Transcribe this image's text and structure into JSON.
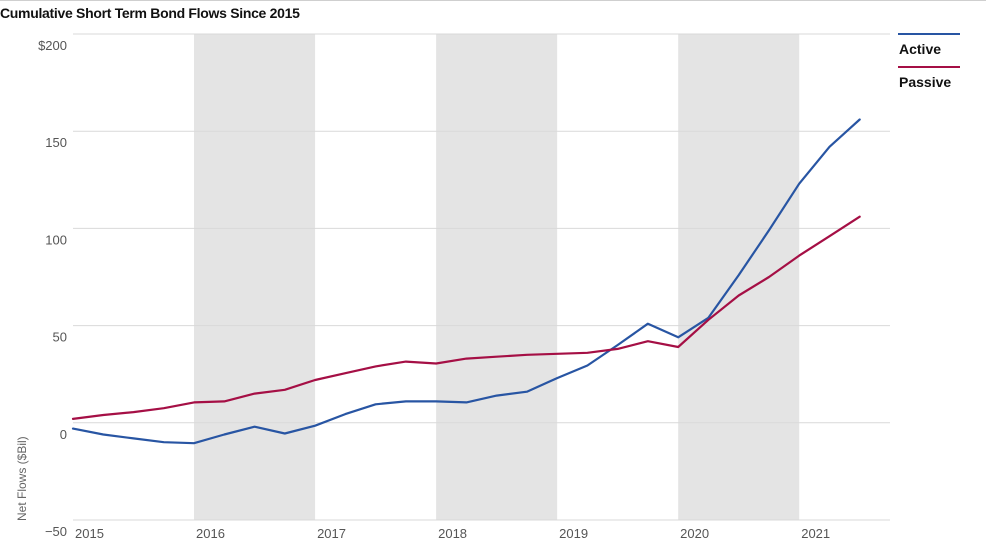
{
  "chart_data": {
    "type": "line",
    "title": "Cumulative Short Term Bond Flows Since 2015",
    "ylabel": "Net Flows ($Bil)",
    "xlabel": "",
    "x_ticks": [
      "2015",
      "2016",
      "2017",
      "2018",
      "2019",
      "2020",
      "2021"
    ],
    "y_ticks": [
      "$200",
      "150",
      "100",
      "50",
      "0",
      "−50"
    ],
    "y_tick_values": [
      200,
      150,
      100,
      50,
      0,
      -50
    ],
    "ylim": [
      -50,
      200
    ],
    "xlim": [
      2015,
      2021.75
    ],
    "shaded_years": [
      [
        2016,
        2017
      ],
      [
        2018,
        2019
      ],
      [
        2020,
        2021
      ]
    ],
    "grid": true,
    "legend_position": "top-right",
    "x": [
      2015.0,
      2015.25,
      2015.5,
      2015.75,
      2016.0,
      2016.25,
      2016.5,
      2016.75,
      2017.0,
      2017.25,
      2017.5,
      2017.75,
      2018.0,
      2018.25,
      2018.5,
      2018.75,
      2019.0,
      2019.25,
      2019.5,
      2019.75,
      2020.0,
      2020.25,
      2020.5,
      2020.75,
      2021.0,
      2021.25,
      2021.5
    ],
    "series": [
      {
        "name": "Active",
        "color": "#2855a3",
        "values": [
          -3,
          -6,
          -8,
          -10,
          -10.5,
          -6,
          -2,
          -5.5,
          -1.5,
          4.5,
          9.5,
          11,
          11,
          10.5,
          14,
          16,
          23,
          29.5,
          40,
          51,
          44,
          54,
          76,
          99,
          123,
          142,
          156
        ]
      },
      {
        "name": "Passive",
        "color": "#a50f45",
        "values": [
          2,
          4,
          5.5,
          7.5,
          10.5,
          11,
          15,
          17,
          22,
          25.5,
          29,
          31.5,
          30.5,
          33,
          34,
          35,
          35.5,
          36,
          38,
          42,
          39,
          53,
          65.5,
          75,
          86,
          96,
          106
        ]
      }
    ]
  },
  "legend": {
    "active_label": "Active",
    "passive_label": "Passive"
  },
  "colors": {
    "shade": "#e4e4e4",
    "grid": "#d9d9d9"
  }
}
